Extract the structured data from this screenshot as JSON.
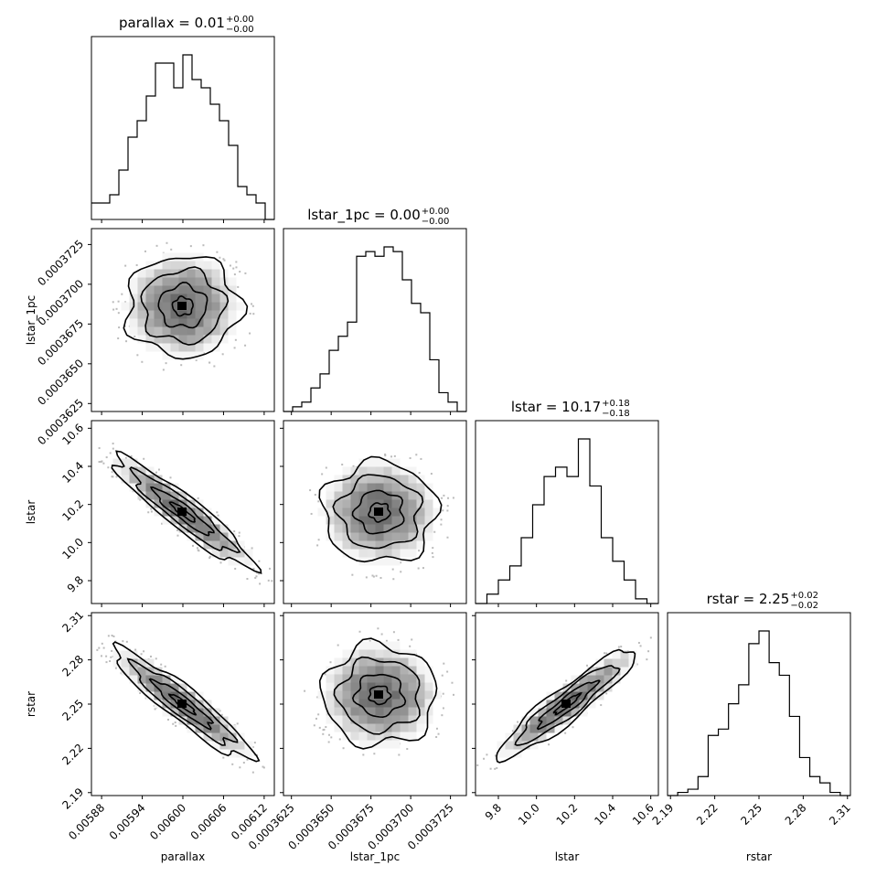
{
  "chart_data": {
    "type": "corner",
    "parameters": [
      {
        "key": "parallax",
        "label": "parallax",
        "title_main": "parallax = 0.01",
        "title_sup": "+0.00",
        "title_sub": "−0.00",
        "range": [
          0.005865,
          0.006135
        ],
        "ticks": [
          0.00588,
          0.00594,
          0.006,
          0.00606,
          0.00612
        ],
        "tick_labels": [
          "0.00588",
          "0.00594",
          "0.00600",
          "0.00606",
          "0.00612"
        ],
        "hist": [
          2,
          2,
          3,
          6,
          10,
          12,
          15,
          19,
          19,
          16,
          20,
          17,
          16,
          14,
          12,
          9,
          4,
          3,
          2,
          0
        ]
      },
      {
        "key": "lstar_1pc",
        "label": "lstar_1pc",
        "title_main": "lstar_1pc = 0.00",
        "title_sup": "+0.00",
        "title_sub": "−0.00",
        "range": [
          0.000362,
          0.0003735
        ],
        "ticks": [
          0.0003625,
          0.000365,
          0.0003675,
          0.00037,
          0.0003725
        ],
        "tick_labels": [
          "0.0003625",
          "0.0003650",
          "0.0003675",
          "0.0003700",
          "0.0003725"
        ],
        "hist": [
          0,
          1,
          2,
          5,
          8,
          13,
          16,
          19,
          33,
          34,
          33,
          35,
          34,
          28,
          23,
          21,
          11,
          4,
          2,
          0
        ]
      },
      {
        "key": "lstar",
        "label": "lstar",
        "title_main": "lstar = 10.17",
        "title_sup": "+0.18",
        "title_sub": "−0.18",
        "range": [
          9.68,
          10.64
        ],
        "ticks": [
          9.8,
          10.0,
          10.2,
          10.4,
          10.6
        ],
        "tick_labels": [
          "9.8",
          "10.0",
          "10.2",
          "10.4",
          "10.6"
        ],
        "hist": [
          0,
          2,
          5,
          8,
          14,
          21,
          27,
          29,
          27,
          35,
          25,
          14,
          9,
          5,
          1,
          0
        ]
      },
      {
        "key": "rstar",
        "label": "rstar",
        "title_main": "rstar = 2.25",
        "title_sup": "+0.02",
        "title_sub": "−0.02",
        "range": [
          2.188,
          2.312
        ],
        "ticks": [
          2.19,
          2.22,
          2.25,
          2.28,
          2.31
        ],
        "tick_labels": [
          "2.19",
          "2.22",
          "2.25",
          "2.28",
          "2.31"
        ],
        "hist": [
          0,
          1,
          2,
          6,
          19,
          21,
          29,
          35,
          48,
          52,
          42,
          38,
          25,
          12,
          6,
          4,
          1,
          0
        ]
      }
    ],
    "correlations": {
      "1-0": 0.0,
      "2-0": -0.95,
      "2-1": 0.0,
      "3-0": -0.9,
      "3-1": 0.0,
      "3-2": 0.9
    }
  }
}
